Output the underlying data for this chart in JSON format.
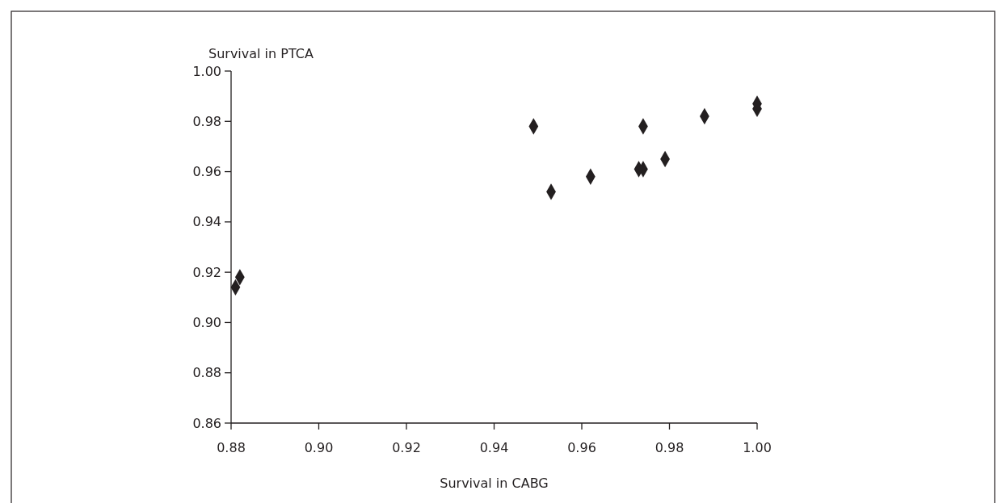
{
  "chart_data": {
    "type": "scatter",
    "xlabel": "Survival in CABG",
    "ylabel": "Survival in PTCA",
    "x": [
      0.881,
      0.882,
      0.949,
      0.953,
      0.962,
      0.973,
      0.974,
      0.974,
      0.979,
      0.988,
      1.0,
      1.0
    ],
    "values": [
      0.914,
      0.918,
      0.978,
      0.952,
      0.958,
      0.961,
      0.961,
      0.978,
      0.965,
      0.982,
      0.985,
      0.987
    ],
    "color": "#231f20",
    "marker": "diamond",
    "xlim": [
      0.88,
      1.0
    ],
    "xticks": [
      0.88,
      {
        "value": 0.9,
        "label": "0.90"
      },
      0.92,
      0.94,
      0.96,
      0.98,
      {
        "value": 1.0,
        "label": "1.00"
      }
    ],
    "ylim": [
      0.86,
      1.0
    ],
    "yticks": [
      0.86,
      0.88,
      {
        "value": 0.9,
        "label": "0.90"
      },
      0.92,
      0.94,
      0.96,
      0.98,
      {
        "value": 1.0,
        "label": "1.00"
      }
    ]
  }
}
